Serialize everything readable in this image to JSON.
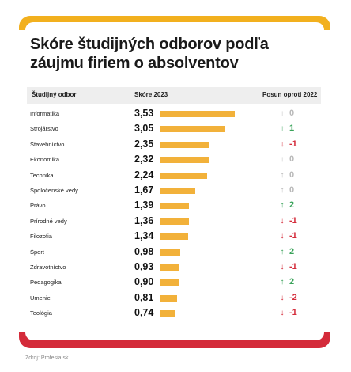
{
  "title": "Skóre študijných odborov podľa záujmu firiem o absolventov",
  "source": "Zdroj: Profesia.sk",
  "colors": {
    "up": "#3aa35a",
    "down": "#d42b3a",
    "neutral": "#b9b9b9",
    "bar": "#f2b13a",
    "accent_top": "#f2b01e",
    "accent_bottom": "#d42b3a"
  },
  "chart_data": {
    "type": "table",
    "columns": [
      "Študijný odbor",
      "Skóre 2023",
      "Posun oproti 2022"
    ],
    "rows": [
      {
        "field": "Informatika",
        "score": "3,53",
        "value": 3.53,
        "change": "0",
        "dir": "neutral"
      },
      {
        "field": "Strojárstvo",
        "score": "3,05",
        "value": 3.05,
        "change": "1",
        "dir": "up"
      },
      {
        "field": "Stavebníctvo",
        "score": "2,35",
        "value": 2.35,
        "change": "-1",
        "dir": "down"
      },
      {
        "field": "Ekonomika",
        "score": "2,32",
        "value": 2.32,
        "change": "0",
        "dir": "neutral"
      },
      {
        "field": "Technika",
        "score": "2,24",
        "value": 2.24,
        "change": "0",
        "dir": "neutral"
      },
      {
        "field": "Spoločenské vedy",
        "score": "1,67",
        "value": 1.67,
        "change": "0",
        "dir": "neutral"
      },
      {
        "field": "Právo",
        "score": "1,39",
        "value": 1.39,
        "change": "2",
        "dir": "up"
      },
      {
        "field": "Prírodné vedy",
        "score": "1,36",
        "value": 1.36,
        "change": "-1",
        "dir": "down"
      },
      {
        "field": "Filozofia",
        "score": "1,34",
        "value": 1.34,
        "change": "-1",
        "dir": "down"
      },
      {
        "field": "Šport",
        "score": "0,98",
        "value": 0.98,
        "change": "2",
        "dir": "up"
      },
      {
        "field": "Zdravotníctvo",
        "score": "0,93",
        "value": 0.93,
        "change": "-1",
        "dir": "down"
      },
      {
        "field": "Pedagogika",
        "score": "0,90",
        "value": 0.9,
        "change": "2",
        "dir": "up"
      },
      {
        "field": "Umenie",
        "score": "0,81",
        "value": 0.81,
        "change": "-2",
        "dir": "down"
      },
      {
        "field": "Teológia",
        "score": "0,74",
        "value": 0.74,
        "change": "-1",
        "dir": "down"
      }
    ],
    "xlim": [
      0,
      3.53
    ]
  }
}
